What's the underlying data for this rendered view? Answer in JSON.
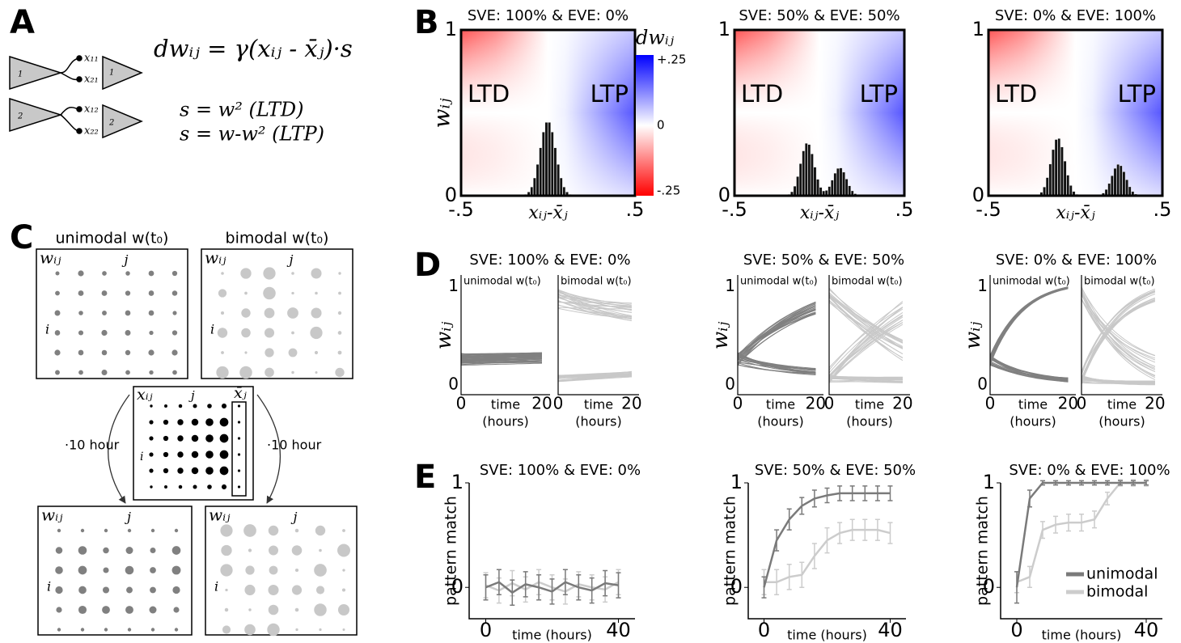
{
  "panel_labels": {
    "a": "A",
    "b": "B",
    "c": "C",
    "d": "D",
    "e": "E"
  },
  "panel_a": {
    "equation": "dwᵢⱼ = γ(xᵢⱼ - x̄ⱼ)·s",
    "rule_ltd": "s = w²   (LTD)",
    "rule_ltp": "s = w-w² (LTP)",
    "neuron_labels": [
      "1",
      "2",
      "1",
      "2"
    ],
    "synapse_labels": [
      "x₁₁",
      "x₂₁",
      "x₁₂",
      "x₂₂"
    ]
  },
  "panel_b": {
    "titles": [
      "SVE: 100% & EVE: 0%",
      "SVE: 50% & EVE: 50%",
      "SVE: 0% & EVE: 100%"
    ],
    "region_labels": [
      "LTD",
      "LTP"
    ],
    "y_label": "wᵢⱼ",
    "x_label": "xᵢⱼ-x̄ⱼ",
    "xlim": [
      -0.5,
      0.5
    ],
    "ylim": [
      0,
      1
    ],
    "xticks": [
      {
        "value": -0.5,
        "label": "-.5"
      },
      {
        "value": 0.5,
        "label": ".5"
      }
    ],
    "yticks": [
      0,
      1
    ],
    "colorbar_title": "dwᵢⱼ",
    "clim": [
      -0.25,
      0.25
    ],
    "colorbar_ticks": [
      {
        "value": 0.25,
        "label": "+.25"
      },
      0,
      {
        "value": -0.25,
        "label": "-.25"
      }
    ]
  },
  "panel_c": {
    "titles": [
      "unimodal w(t₀)",
      "bimodal w(t₀)"
    ],
    "matrix_label": "wᵢⱼ",
    "input_label": "xᵢⱼ",
    "mean_label": "x̄ⱼ",
    "column_index": "j",
    "row_index": "i",
    "arrow_label": "·10 hour"
  },
  "panel_d": {
    "titles": [
      "SVE: 100% & EVE: 0%",
      "SVE: 50% & EVE: 50%",
      "SVE: 0% & EVE: 100%"
    ],
    "subplot_labels": [
      "unimodal w(t₀)",
      "bimodal w(t₀)"
    ],
    "y_label": "wᵢⱼ",
    "x_label": [
      "time",
      "(hours)"
    ],
    "xlim": [
      0,
      22
    ],
    "ylim": [
      -0.1,
      1.12
    ],
    "xticks": [
      0,
      20
    ],
    "yticks": [
      0,
      1
    ]
  },
  "panel_e": {
    "y_label": "pattern match",
    "x_label": "time (hours)",
    "x": [
      0,
      4,
      8,
      12,
      16,
      20,
      24,
      28,
      32,
      36,
      40
    ],
    "xlim": [
      -5,
      45
    ],
    "ylim": [
      -0.3,
      1
    ],
    "xticks": [
      0,
      40
    ],
    "yticks": [
      0,
      1
    ],
    "series_styles": [
      {
        "name": "unimodal",
        "color": "#7a7a7a"
      },
      {
        "name": "bimodal",
        "color": "#cccccc"
      }
    ],
    "charts": [
      {
        "title": "SVE: 100% & EVE: 0%",
        "series": [
          {
            "values": [
              0.0,
              0.05,
              -0.05,
              0.03,
              0.0,
              -0.04,
              0.05,
              0.0,
              -0.03,
              0.04,
              0.02
            ],
            "errors": [
              0.12,
              0.12,
              0.12,
              0.12,
              0.12,
              0.12,
              0.12,
              0.12,
              0.12,
              0.12,
              0.12
            ]
          },
          {
            "values": [
              0.02,
              -0.03,
              0.04,
              -0.02,
              0.05,
              0.0,
              -0.04,
              0.03,
              0.0,
              -0.02,
              0.05
            ],
            "errors": [
              0.12,
              0.12,
              0.12,
              0.12,
              0.12,
              0.12,
              0.12,
              0.12,
              0.12,
              0.12,
              0.12
            ]
          }
        ]
      },
      {
        "title": "SVE: 50% & EVE: 50%",
        "series": [
          {
            "values": [
              0.0,
              0.45,
              0.65,
              0.78,
              0.85,
              0.88,
              0.9,
              0.9,
              0.9,
              0.9,
              0.9
            ],
            "errors": [
              0.1,
              0.1,
              0.1,
              0.08,
              0.08,
              0.07,
              0.07,
              0.07,
              0.07,
              0.07,
              0.07
            ]
          },
          {
            "values": [
              0.05,
              0.05,
              0.1,
              0.12,
              0.3,
              0.45,
              0.52,
              0.55,
              0.55,
              0.55,
              0.52
            ],
            "errors": [
              0.12,
              0.12,
              0.12,
              0.12,
              0.12,
              0.12,
              0.1,
              0.1,
              0.1,
              0.1,
              0.1
            ]
          }
        ]
      },
      {
        "title": "SVE: 0% & EVE: 100%",
        "series": [
          {
            "values": [
              0.0,
              0.85,
              1,
              1,
              1,
              1,
              1,
              1,
              1,
              1,
              1
            ],
            "errors": [
              0.15,
              0.08,
              0.02,
              0.02,
              0.02,
              0.02,
              0.02,
              0.02,
              0.02,
              0.02,
              0.02
            ]
          },
          {
            "values": [
              0.05,
              0.1,
              0.55,
              0.6,
              0.62,
              0.62,
              0.65,
              0.85,
              1,
              1,
              1
            ],
            "errors": [
              0.1,
              0.1,
              0.08,
              0.08,
              0.08,
              0.08,
              0.08,
              0.06,
              0.03,
              0.03,
              0.03
            ]
          }
        ]
      }
    ]
  }
}
